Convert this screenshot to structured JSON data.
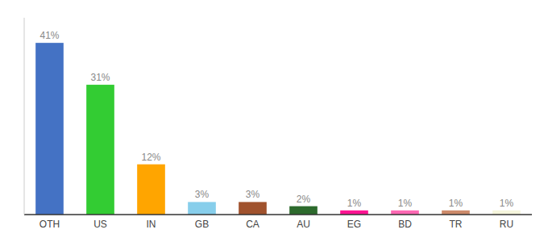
{
  "chart_data": {
    "type": "bar",
    "categories": [
      "OTH",
      "US",
      "IN",
      "GB",
      "CA",
      "AU",
      "EG",
      "BD",
      "TR",
      "RU"
    ],
    "values": [
      41,
      31,
      12,
      3,
      3,
      2,
      1,
      1,
      1,
      1
    ],
    "value_labels": [
      "41%",
      "31%",
      "12%",
      "3%",
      "3%",
      "2%",
      "1%",
      "1%",
      "1%",
      "1%"
    ],
    "colors": [
      "#4472C4",
      "#33CC33",
      "#FFA500",
      "#87CEEB",
      "#A0522D",
      "#2D6A2D",
      "#FF1493",
      "#FF69B4",
      "#CD8B6B",
      "#F5F5DC"
    ],
    "ylim": [
      0,
      47
    ],
    "data_labels": true,
    "tick_labels": "x",
    "grid": false
  }
}
